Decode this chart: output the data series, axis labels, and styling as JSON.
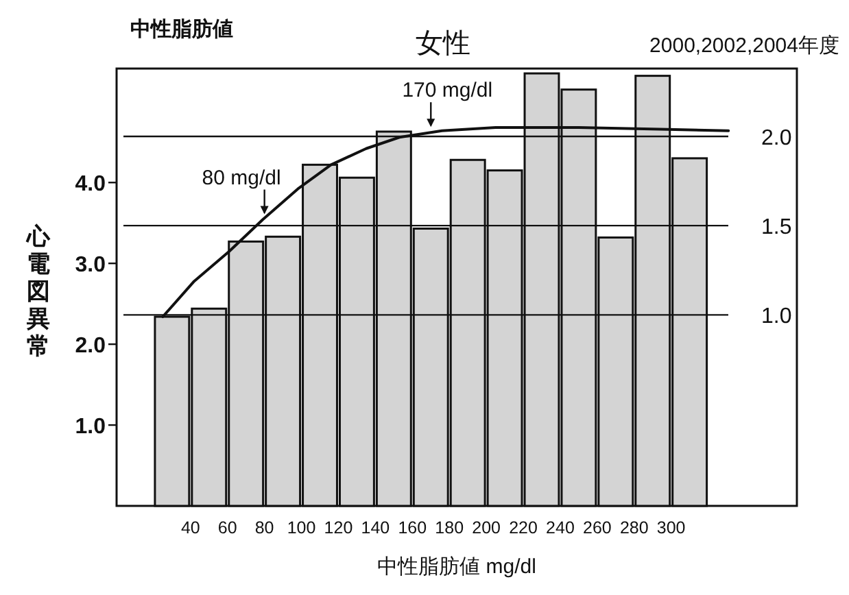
{
  "chart_data": {
    "type": "histogram",
    "title": "女性",
    "subtitle": "2000,2002,2004年度",
    "xlabel": "中性脂肪値 mg/dl",
    "ylabel": "心電図異常",
    "bins": [
      20,
      40,
      60,
      80,
      100,
      120,
      140,
      160,
      180,
      200,
      220,
      240,
      260,
      280,
      300,
      320
    ],
    "series": [
      {
        "color": "#d4d4d4",
        "values": [
          2.34,
          2.44,
          3.27,
          3.33,
          4.22,
          4.06,
          4.63,
          3.43,
          4.28,
          4.15,
          5.35,
          5.15,
          3.32,
          5.32,
          4.3
        ]
      },
      {
        "type": "line",
        "color": "#111111",
        "x": [
          25,
          42,
          61,
          79,
          98,
          116,
          135,
          153,
          176,
          205,
          250,
          294,
          331
        ],
        "values": [
          2.34,
          2.78,
          3.15,
          3.54,
          3.92,
          4.22,
          4.42,
          4.56,
          4.64,
          4.68,
          4.68,
          4.66,
          4.64
        ]
      }
    ],
    "xlim": [
      0,
      368
    ],
    "xticks": [
      40,
      60,
      80,
      100,
      120,
      140,
      160,
      180,
      200,
      220,
      240,
      260,
      280,
      300
    ],
    "ylim": [
      0,
      5.41
    ],
    "yticks": [
      {
        "value": 1,
        "label": "1.0"
      },
      {
        "value": 2,
        "label": "2.0"
      },
      {
        "value": 3,
        "label": "3.0"
      },
      {
        "value": 4,
        "label": "4.0"
      }
    ],
    "y2lim": [
      -0.07,
      2.38
    ],
    "y2ticks": [
      {
        "value": 1,
        "label": "1.0"
      },
      {
        "value": 1.5,
        "label": "1.5"
      },
      {
        "value": 2,
        "label": "2.0"
      }
    ],
    "ref_lines": [
      {
        "axis": "y2",
        "value": 1,
        "color": "#111111"
      },
      {
        "axis": "y2",
        "value": 1.5,
        "color": "#111111"
      },
      {
        "axis": "y2",
        "value": 2,
        "color": "#111111"
      }
    ],
    "annotations": [
      "中性脂肪値",
      {
        "text": "80 mg/dl",
        "x": 80,
        "y": 3.54
      },
      {
        "text": "170 mg/dl",
        "x": 170,
        "y": 4.62
      }
    ]
  }
}
